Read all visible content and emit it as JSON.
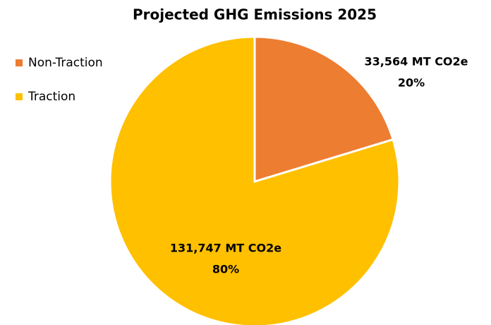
{
  "chart_data": {
    "type": "pie",
    "title": "Projected GHG Emissions 2025",
    "categories": [
      "Non-Traction",
      "Traction"
    ],
    "values": [
      33564,
      131747
    ],
    "value_labels": [
      "33,564 MT CO2e",
      "131,747 MT CO2e"
    ],
    "percents": [
      20,
      80
    ],
    "percent_labels": [
      "20%",
      "80%"
    ],
    "colors": [
      "#ED7D31",
      "#FFC000"
    ],
    "legend": "left"
  }
}
